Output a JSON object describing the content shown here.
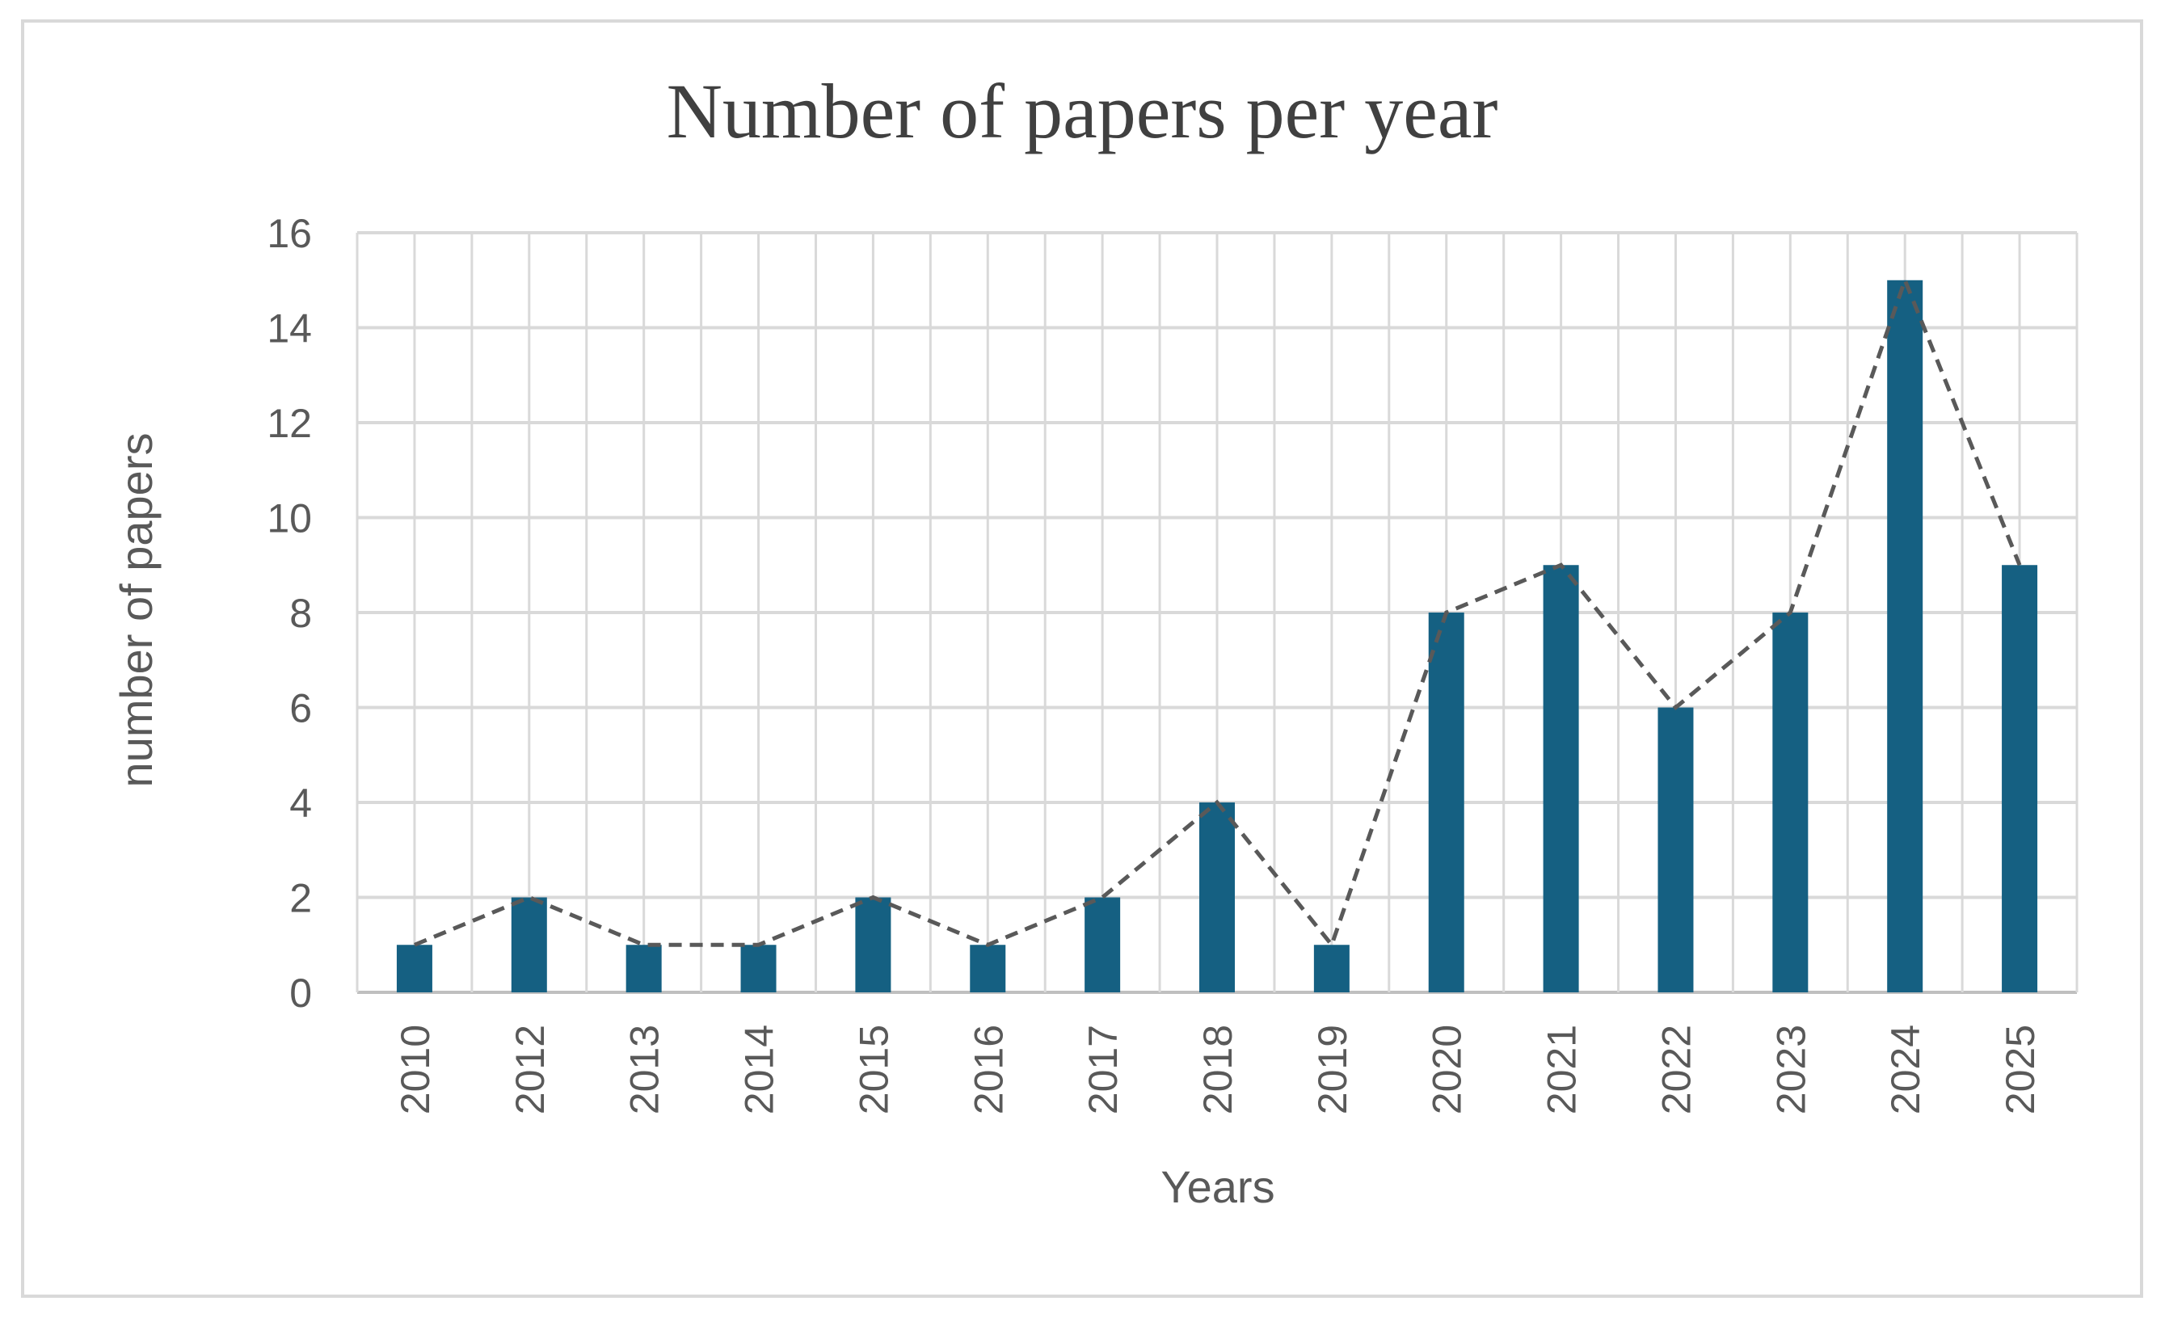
{
  "chart_data": {
    "type": "bar",
    "title": "Number of papers per year",
    "xlabel": "Years",
    "ylabel": "number of papers",
    "categories": [
      "2010",
      "2012",
      "2013",
      "2014",
      "2015",
      "2016",
      "2017",
      "2018",
      "2019",
      "2020",
      "2021",
      "2022",
      "2023",
      "2024",
      "2025"
    ],
    "values": [
      1,
      2,
      1,
      1,
      2,
      1,
      2,
      4,
      1,
      8,
      9,
      6,
      8,
      15,
      9
    ],
    "ylim": [
      0,
      16
    ],
    "yticks": [
      0,
      2,
      4,
      6,
      8,
      10,
      12,
      14,
      16
    ],
    "grid": true,
    "overlay_line": "dashed",
    "bar_color": "#156082",
    "line_color": "#595959"
  }
}
